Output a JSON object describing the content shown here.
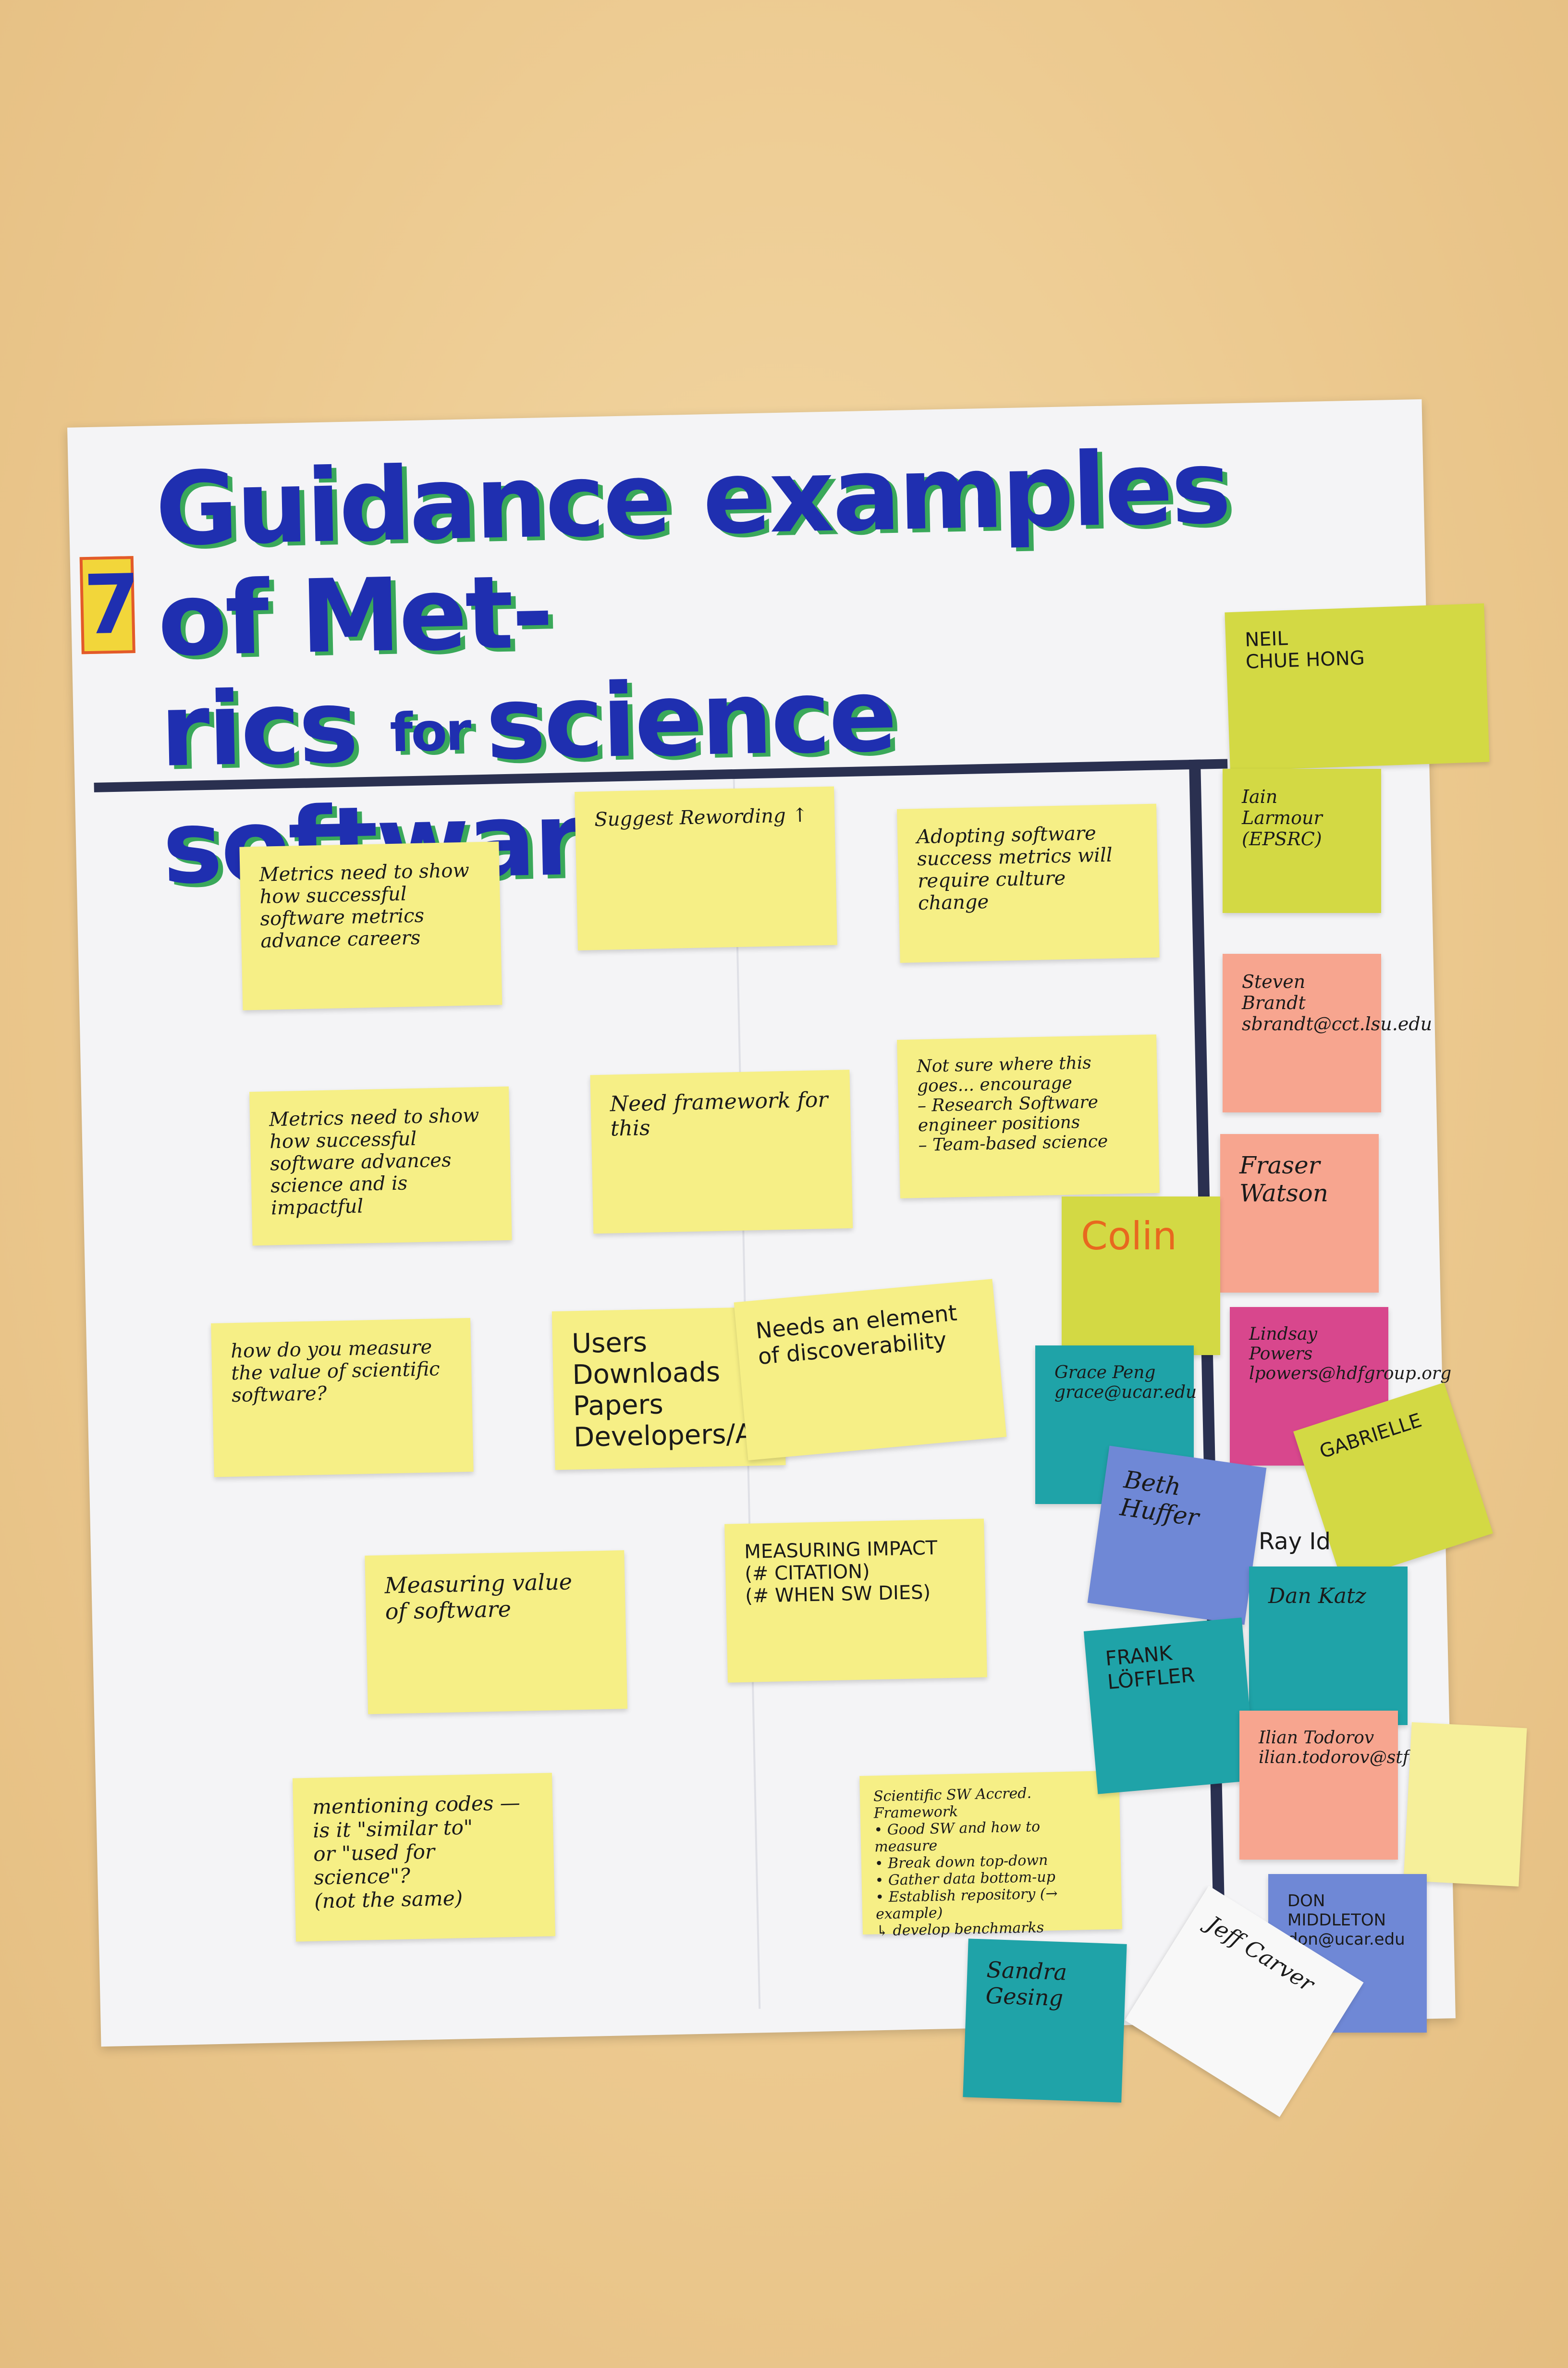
{
  "title": {
    "line1": "Guidance examples of Met-",
    "line2_a": "rics ",
    "line2_small": "for ",
    "line2_b": "science software",
    "badge": "7"
  },
  "notes": {
    "suggest": "Suggest Rewording ↑",
    "metrics_careers": "Metrics need to show how successful software metrics advance careers",
    "adopting": "Adopting software success metrics will require culture change",
    "framework": "Need framework for this",
    "metrics_science": "Metrics need to show how successful software advances science and is impactful",
    "not_sure": "Not sure where this goes... encourage\n– Research Software engineer positions\n– Team-based science",
    "measure_value_q": "how do you measure the value of scientific software?",
    "users": "Users\nDownloads\nPapers\nDevelopers/Aut",
    "discoverability": "Needs an element of discoverability",
    "measuring_impact": "MEASURING IMPACT\n(# CITATION)\n(# WHEN SW DIES)",
    "measuring_value": "Measuring value\nof software",
    "mentioning": "mentioning codes —\nis it \"similar to\"\nor \"used for science\"?\n(not the same)",
    "framework_list": "Scientific SW Accred. Framework\n• Good SW and how to measure\n• Break down top-down\n• Gather data bottom-up\n• Establish repository (→ example)\n↳ develop benchmarks",
    "colin": "Colin"
  },
  "names": {
    "neil": "NEIL\nCHUE HONG",
    "iain": "Iain\nLarmour\n(EPSRC)",
    "steven": "Steven\nBrandt\nsbrandt@cct.lsu.edu",
    "fraser": "Fraser\nWatson",
    "lindsay": "Lindsay Powers\nlpowers@hdfgroup.org",
    "grace": "Grace Peng\ngrace@ucar.edu",
    "gabrielle": "GABRIELLE",
    "beth": "Beth\nHuffer",
    "ray": "Ray Id",
    "dan": "Dan Katz",
    "frank": "FRANK\nLÖFFLER",
    "iliancoverage": "Ilian Todorov\nilian.todorov@stfc.ac.uk",
    "yellow_small": "",
    "don": "DON MIDDLETON\ndon@ucar.edu",
    "jeff": "Jeff Carver",
    "sandra": "Sandra\nGesing"
  }
}
